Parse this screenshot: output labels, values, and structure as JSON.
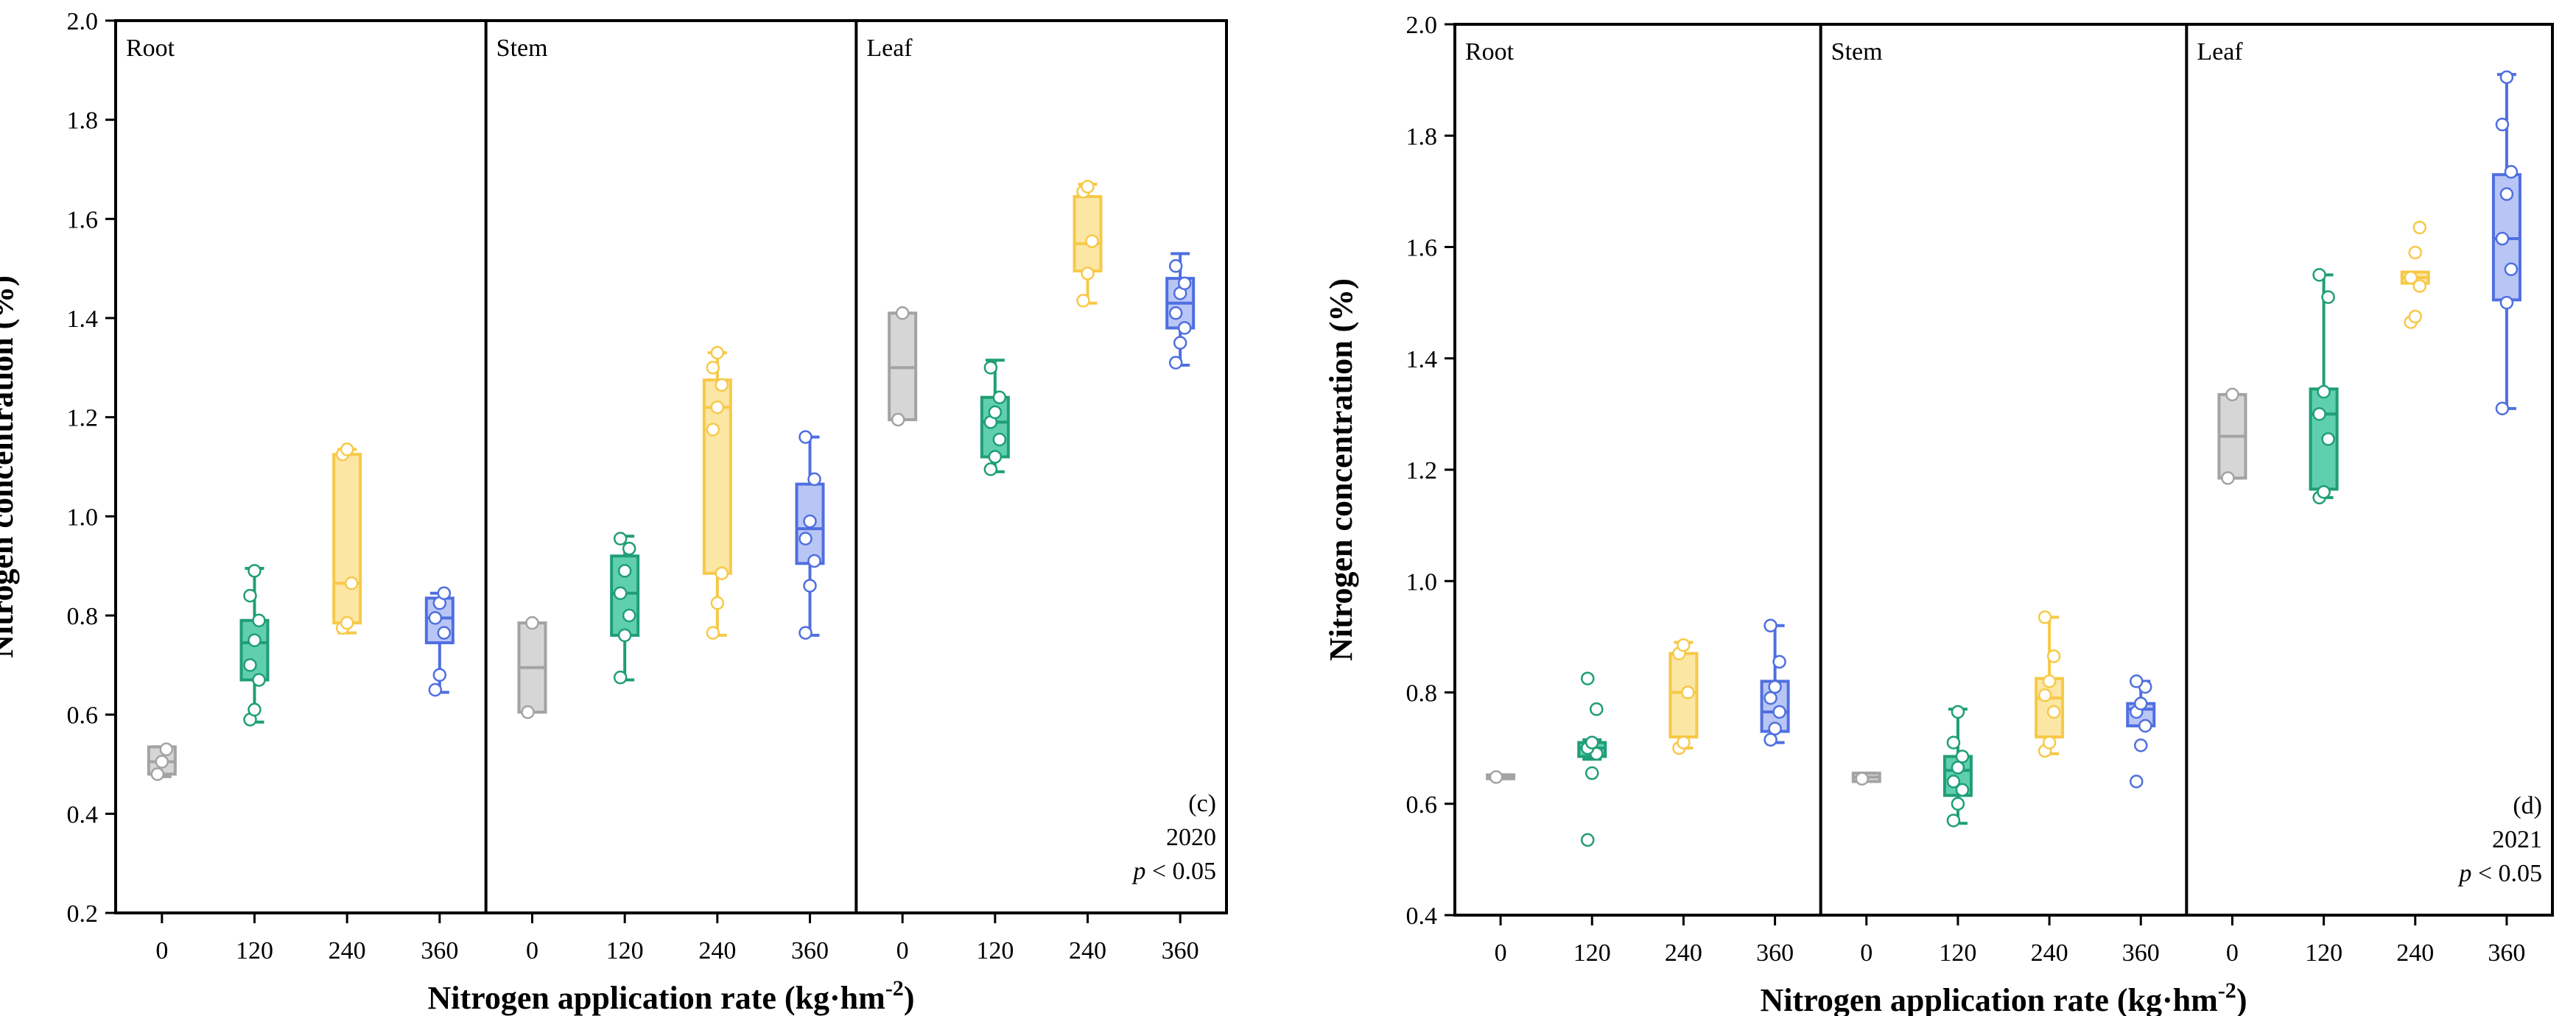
{
  "chart_data": [
    {
      "type": "box",
      "ylabel": "Nitrogen concentration (%)",
      "xlabel_main": "Nitrogen application rate (kg·hm",
      "xlabel_sup": "-2",
      "xlabel_end": ")",
      "ylim": [
        0.2,
        2.0
      ],
      "yticks": [
        "0.2",
        "0.4",
        "0.6",
        "0.8",
        "1.0",
        "1.2",
        "1.4",
        "1.6",
        "1.8",
        "2.0"
      ],
      "categories": [
        "0",
        "120",
        "240",
        "360"
      ],
      "colors": [
        "#a3a3a3",
        "#1f9e77",
        "#f7c948",
        "#4f6fe0"
      ],
      "fills": [
        "#d6d6d6",
        "#5fcfae",
        "#fce6a4",
        "#b9c6f5"
      ],
      "annotation": {
        "panel": "(c)",
        "year": "2020",
        "p_prefix": "p",
        "p_rest": " < 0.05"
      },
      "facets": [
        {
          "label": "Root",
          "boxes": [
            {
              "category": "0",
              "min": 0.475,
              "q1": 0.48,
              "median": 0.505,
              "q3": 0.535,
              "max": 0.535,
              "points": [
                0.48,
                0.505,
                0.53
              ]
            },
            {
              "category": "120",
              "min": 0.585,
              "q1": 0.67,
              "median": 0.745,
              "q3": 0.79,
              "max": 0.895,
              "points": [
                0.59,
                0.61,
                0.67,
                0.7,
                0.75,
                0.79,
                0.84,
                0.89
              ]
            },
            {
              "category": "240",
              "min": 0.765,
              "q1": 0.785,
              "median": 0.865,
              "q3": 1.125,
              "max": 1.135,
              "points": [
                0.775,
                0.785,
                0.865,
                1.125,
                1.135
              ]
            },
            {
              "category": "360",
              "min": 0.645,
              "q1": 0.745,
              "median": 0.795,
              "q3": 0.835,
              "max": 0.845,
              "points": [
                0.65,
                0.68,
                0.765,
                0.795,
                0.825,
                0.845
              ]
            }
          ]
        },
        {
          "label": "Stem",
          "boxes": [
            {
              "category": "0",
              "min": 0.605,
              "q1": 0.605,
              "median": 0.695,
              "q3": 0.785,
              "max": 0.785,
              "points": [
                0.605,
                0.785
              ]
            },
            {
              "category": "120",
              "min": 0.67,
              "q1": 0.76,
              "median": 0.845,
              "q3": 0.92,
              "max": 0.96,
              "points": [
                0.675,
                0.76,
                0.8,
                0.845,
                0.89,
                0.935,
                0.955
              ]
            },
            {
              "category": "240",
              "min": 0.76,
              "q1": 0.885,
              "median": 1.22,
              "q3": 1.275,
              "max": 1.33,
              "points": [
                0.765,
                0.825,
                0.885,
                1.175,
                1.22,
                1.265,
                1.3,
                1.33
              ]
            },
            {
              "category": "360",
              "min": 0.76,
              "q1": 0.905,
              "median": 0.975,
              "q3": 1.065,
              "max": 1.16,
              "points": [
                0.765,
                0.86,
                0.91,
                0.955,
                0.99,
                1.075,
                1.16
              ]
            }
          ]
        },
        {
          "label": "Leaf",
          "boxes": [
            {
              "category": "0",
              "min": 1.195,
              "q1": 1.195,
              "median": 1.3,
              "q3": 1.41,
              "max": 1.41,
              "points": [
                1.195,
                1.41
              ]
            },
            {
              "category": "120",
              "min": 1.09,
              "q1": 1.12,
              "median": 1.19,
              "q3": 1.24,
              "max": 1.315,
              "points": [
                1.095,
                1.12,
                1.155,
                1.19,
                1.21,
                1.24,
                1.3
              ]
            },
            {
              "category": "240",
              "min": 1.43,
              "q1": 1.495,
              "median": 1.55,
              "q3": 1.645,
              "max": 1.67,
              "points": [
                1.435,
                1.49,
                1.555,
                1.655,
                1.665
              ]
            },
            {
              "category": "360",
              "min": 1.305,
              "q1": 1.38,
              "median": 1.43,
              "q3": 1.48,
              "max": 1.53,
              "points": [
                1.31,
                1.35,
                1.38,
                1.41,
                1.45,
                1.47,
                1.505
              ]
            }
          ]
        }
      ]
    },
    {
      "type": "box",
      "ylabel": "Nitrogen concentration (%)",
      "xlabel_main": "Nitrogen application rate (kg·hm",
      "xlabel_sup": "-2",
      "xlabel_end": ")",
      "ylim": [
        0.4,
        2.0
      ],
      "yticks": [
        "0.4",
        "0.6",
        "0.8",
        "1.0",
        "1.2",
        "1.4",
        "1.6",
        "1.8",
        "2.0"
      ],
      "categories": [
        "0",
        "120",
        "240",
        "360"
      ],
      "colors": [
        "#a3a3a3",
        "#1f9e77",
        "#f7c948",
        "#4f6fe0"
      ],
      "fills": [
        "#d6d6d6",
        "#5fcfae",
        "#fce6a4",
        "#b9c6f5"
      ],
      "annotation": {
        "panel": "(d)",
        "year": "2021",
        "p_prefix": "p",
        "p_rest": " < 0.05"
      },
      "facets": [
        {
          "label": "Root",
          "boxes": [
            {
              "category": "0",
              "min": 0.645,
              "q1": 0.645,
              "median": 0.648,
              "q3": 0.652,
              "max": 0.652,
              "points": [
                0.648
              ]
            },
            {
              "category": "120",
              "min": 0.68,
              "q1": 0.685,
              "median": 0.7,
              "q3": 0.71,
              "max": 0.715,
              "points": [
                0.535,
                0.655,
                0.69,
                0.7,
                0.71,
                0.77,
                0.825
              ]
            },
            {
              "category": "240",
              "min": 0.7,
              "q1": 0.72,
              "median": 0.8,
              "q3": 0.87,
              "max": 0.89,
              "points": [
                0.7,
                0.71,
                0.8,
                0.87,
                0.885
              ]
            },
            {
              "category": "360",
              "min": 0.71,
              "q1": 0.73,
              "median": 0.765,
              "q3": 0.82,
              "max": 0.92,
              "points": [
                0.715,
                0.735,
                0.765,
                0.79,
                0.81,
                0.855,
                0.92
              ]
            }
          ]
        },
        {
          "label": "Stem",
          "boxes": [
            {
              "category": "0",
              "min": 0.64,
              "q1": 0.64,
              "median": 0.648,
              "q3": 0.655,
              "max": 0.655,
              "points": [
                0.645
              ]
            },
            {
              "category": "120",
              "min": 0.565,
              "q1": 0.615,
              "median": 0.66,
              "q3": 0.685,
              "max": 0.77,
              "points": [
                0.57,
                0.6,
                0.625,
                0.64,
                0.665,
                0.685,
                0.71,
                0.765
              ]
            },
            {
              "category": "240",
              "min": 0.69,
              "q1": 0.72,
              "median": 0.79,
              "q3": 0.825,
              "max": 0.935,
              "points": [
                0.695,
                0.71,
                0.765,
                0.795,
                0.82,
                0.865,
                0.935
              ]
            },
            {
              "category": "360",
              "min": 0.74,
              "q1": 0.74,
              "median": 0.77,
              "q3": 0.78,
              "max": 0.82,
              "points": [
                0.64,
                0.705,
                0.74,
                0.765,
                0.78,
                0.81,
                0.82
              ]
            }
          ]
        },
        {
          "label": "Leaf",
          "boxes": [
            {
              "category": "0",
              "min": 1.185,
              "q1": 1.185,
              "median": 1.26,
              "q3": 1.335,
              "max": 1.335,
              "points": [
                1.185,
                1.335
              ]
            },
            {
              "category": "120",
              "min": 1.15,
              "q1": 1.165,
              "median": 1.3,
              "q3": 1.345,
              "max": 1.55,
              "points": [
                1.15,
                1.16,
                1.255,
                1.3,
                1.34,
                1.51,
                1.55
              ]
            },
            {
              "category": "240",
              "min": 1.535,
              "q1": 1.535,
              "median": 1.545,
              "q3": 1.555,
              "max": 1.555,
              "points": [
                1.465,
                1.475,
                1.53,
                1.545,
                1.59,
                1.635
              ]
            },
            {
              "category": "360",
              "min": 1.31,
              "q1": 1.505,
              "median": 1.615,
              "q3": 1.73,
              "max": 1.91,
              "points": [
                1.31,
                1.5,
                1.56,
                1.615,
                1.695,
                1.735,
                1.82,
                1.905
              ]
            }
          ]
        }
      ]
    }
  ]
}
